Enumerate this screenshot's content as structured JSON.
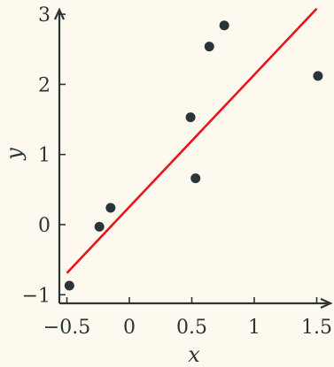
{
  "colors": {
    "background": "#fdf9ee",
    "axis": "#2b3436",
    "points": "#2b3436",
    "fit_line": "#e8141c"
  },
  "chart_data": {
    "type": "scatter",
    "title": "",
    "xlabel": "x",
    "ylabel": "y",
    "xlim": [
      -0.55,
      1.55
    ],
    "ylim": [
      -1.1,
      3.1
    ],
    "grid": false,
    "legend": "none",
    "x_ticks": [
      -0.5,
      0,
      0.5,
      1,
      1.5
    ],
    "x_tick_labels": [
      "−0.5",
      "0",
      "0.5",
      "1",
      "1.5"
    ],
    "y_ticks": [
      -1,
      0,
      1,
      2,
      3
    ],
    "y_tick_labels": [
      "−1",
      "0",
      "1",
      "2",
      "3"
    ],
    "points": [
      {
        "x": -0.48,
        "y": -0.87
      },
      {
        "x": -0.24,
        "y": -0.03
      },
      {
        "x": -0.15,
        "y": 0.24
      },
      {
        "x": 0.49,
        "y": 1.53
      },
      {
        "x": 0.53,
        "y": 0.66
      },
      {
        "x": 0.64,
        "y": 2.54
      },
      {
        "x": 0.76,
        "y": 2.84
      },
      {
        "x": 1.51,
        "y": 2.12
      }
    ],
    "fit_line": {
      "x": [
        -0.5,
        1.5
      ],
      "y": [
        -0.69,
        3.08
      ]
    }
  }
}
